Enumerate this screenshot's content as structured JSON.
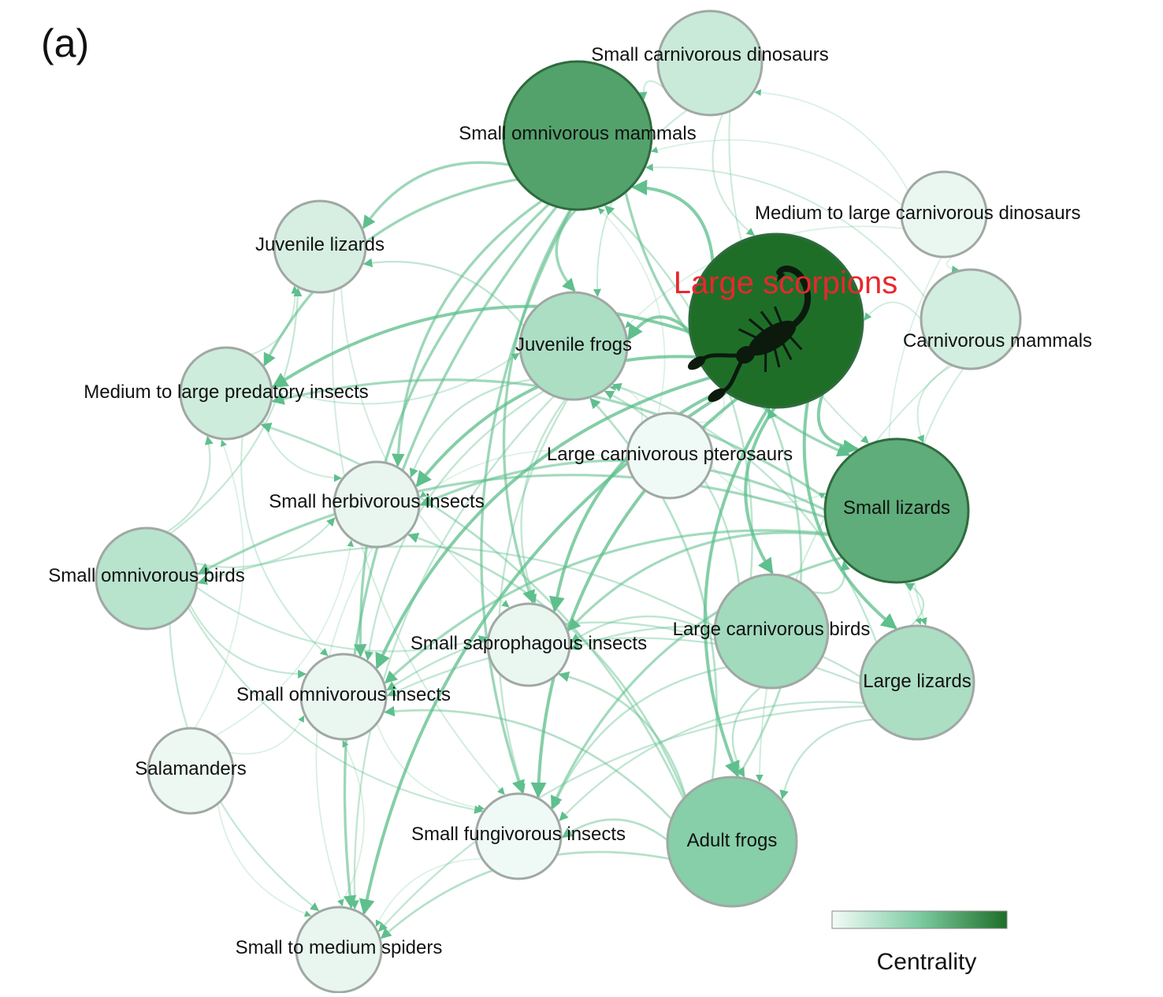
{
  "panel_label": "(a)",
  "highlighted_node": "Large scorpions",
  "highlight_color": "#e8282d",
  "node_stroke_color": "#a0a8a4",
  "legend": {
    "title": "Centrality",
    "color_low": "#f4fbf8",
    "color_high": "#1e6e28"
  },
  "nodes": [
    {
      "id": "small-carnivorous-dinosaurs",
      "label": "Small carnivorous dinosaurs",
      "centrality": 0.18
    },
    {
      "id": "small-omnivorous-mammals",
      "label": "Small omnivorous mammals",
      "centrality": 0.72
    },
    {
      "id": "juvenile-lizards",
      "label": "Juvenile lizards",
      "centrality": 0.12
    },
    {
      "id": "medium-to-large-carnivorous-dinosaurs",
      "label": "Medium to large carnivorous dinosaurs",
      "centrality": 0.04
    },
    {
      "id": "large-scorpions",
      "label": "Large scorpions",
      "centrality": 1.0,
      "icon": "scorpion-icon"
    },
    {
      "id": "carnivorous-mammals",
      "label": "Carnivorous mammals",
      "centrality": 0.14
    },
    {
      "id": "juvenile-frogs",
      "label": "Juvenile frogs",
      "centrality": 0.3
    },
    {
      "id": "medium-to-large-predatory-insects",
      "label": "Medium to large predatory insects",
      "centrality": 0.16
    },
    {
      "id": "large-carnivorous-pterosaurs",
      "label": "Large carnivorous pterosaurs",
      "centrality": 0.02
    },
    {
      "id": "small-lizards",
      "label": "Small lizards",
      "centrality": 0.66
    },
    {
      "id": "small-herbivorous-insects",
      "label": "Small herbivorous insects",
      "centrality": 0.05
    },
    {
      "id": "small-omnivorous-birds",
      "label": "Small omnivorous birds",
      "centrality": 0.25
    },
    {
      "id": "large-carnivorous-birds",
      "label": "Large carnivorous birds",
      "centrality": 0.34
    },
    {
      "id": "small-saprophagous-insects",
      "label": "Small saprophagous insects",
      "centrality": 0.04
    },
    {
      "id": "large-lizards",
      "label": "Large lizards",
      "centrality": 0.3
    },
    {
      "id": "small-omnivorous-insects",
      "label": "Small omnivorous insects",
      "centrality": 0.04
    },
    {
      "id": "salamanders",
      "label": "Salamanders",
      "centrality": 0.03
    },
    {
      "id": "small-fungivorous-insects",
      "label": "Small fungivorous insects",
      "centrality": 0.02
    },
    {
      "id": "adult-frogs",
      "label": "Adult frogs",
      "centrality": 0.46
    },
    {
      "id": "small-to-medium-spiders",
      "label": "Small to medium spiders",
      "centrality": 0.05
    }
  ],
  "edges": [
    [
      "small-carnivorous-dinosaurs",
      "small-omnivorous-mammals"
    ],
    [
      "small-carnivorous-dinosaurs",
      "large-scorpions"
    ],
    [
      "small-carnivorous-dinosaurs",
      "small-lizards"
    ],
    [
      "small-carnivorous-dinosaurs",
      "juvenile-frogs"
    ],
    [
      "medium-to-large-carnivorous-dinosaurs",
      "small-carnivorous-dinosaurs"
    ],
    [
      "medium-to-large-carnivorous-dinosaurs",
      "small-omnivorous-mammals"
    ],
    [
      "medium-to-large-carnivorous-dinosaurs",
      "carnivorous-mammals"
    ],
    [
      "medium-to-large-carnivorous-dinosaurs",
      "large-lizards"
    ],
    [
      "medium-to-large-carnivorous-dinosaurs",
      "juvenile-frogs"
    ],
    [
      "large-scorpions",
      "small-omnivorous-mammals"
    ],
    [
      "large-scorpions",
      "juvenile-frogs"
    ],
    [
      "large-scorpions",
      "small-lizards"
    ],
    [
      "large-scorpions",
      "adult-frogs"
    ],
    [
      "large-scorpions",
      "large-lizards"
    ],
    [
      "large-scorpions",
      "small-herbivorous-insects"
    ],
    [
      "large-scorpions",
      "small-saprophagous-insects"
    ],
    [
      "large-scorpions",
      "small-fungivorous-insects"
    ],
    [
      "large-scorpions",
      "small-omnivorous-insects"
    ],
    [
      "large-scorpions",
      "medium-to-large-predatory-insects"
    ],
    [
      "large-scorpions",
      "small-to-medium-spiders"
    ],
    [
      "large-scorpions",
      "large-carnivorous-birds"
    ],
    [
      "carnivorous-mammals",
      "large-scorpions"
    ],
    [
      "carnivorous-mammals",
      "small-lizards"
    ],
    [
      "carnivorous-mammals",
      "large-lizards"
    ],
    [
      "carnivorous-mammals",
      "adult-frogs"
    ],
    [
      "carnivorous-mammals",
      "small-omnivorous-mammals"
    ],
    [
      "small-omnivorous-mammals",
      "juvenile-lizards"
    ],
    [
      "small-omnivorous-mammals",
      "juvenile-frogs"
    ],
    [
      "small-omnivorous-mammals",
      "medium-to-large-predatory-insects"
    ],
    [
      "small-omnivorous-mammals",
      "small-herbivorous-insects"
    ],
    [
      "small-omnivorous-mammals",
      "small-saprophagous-insects"
    ],
    [
      "small-omnivorous-mammals",
      "small-omnivorous-insects"
    ],
    [
      "small-omnivorous-mammals",
      "small-fungivorous-insects"
    ],
    [
      "small-omnivorous-mammals",
      "small-to-medium-spiders"
    ],
    [
      "small-omnivorous-mammals",
      "small-lizards"
    ],
    [
      "large-carnivorous-pterosaurs",
      "juvenile-frogs"
    ],
    [
      "large-carnivorous-pterosaurs",
      "small-herbivorous-insects"
    ],
    [
      "large-carnivorous-pterosaurs",
      "small-lizards"
    ],
    [
      "large-carnivorous-pterosaurs",
      "small-omnivorous-mammals"
    ],
    [
      "large-carnivorous-pterosaurs",
      "large-scorpions"
    ],
    [
      "juvenile-frogs",
      "juvenile-lizards"
    ],
    [
      "juvenile-frogs",
      "small-herbivorous-insects"
    ],
    [
      "juvenile-frogs",
      "small-saprophagous-insects"
    ],
    [
      "juvenile-frogs",
      "small-omnivorous-insects"
    ],
    [
      "juvenile-frogs",
      "small-fungivorous-insects"
    ],
    [
      "juvenile-frogs",
      "small-to-medium-spiders"
    ],
    [
      "small-lizards",
      "small-herbivorous-insects"
    ],
    [
      "small-lizards",
      "small-saprophagous-insects"
    ],
    [
      "small-lizards",
      "small-omnivorous-insects"
    ],
    [
      "small-lizards",
      "small-fungivorous-insects"
    ],
    [
      "small-lizards",
      "small-omnivorous-birds"
    ],
    [
      "small-lizards",
      "medium-to-large-predatory-insects"
    ],
    [
      "large-carnivorous-birds",
      "small-lizards"
    ],
    [
      "large-carnivorous-birds",
      "juvenile-frogs"
    ],
    [
      "large-carnivorous-birds",
      "small-omnivorous-mammals"
    ],
    [
      "large-carnivorous-birds",
      "small-saprophagous-insects"
    ],
    [
      "large-carnivorous-birds",
      "small-omnivorous-insects"
    ],
    [
      "large-carnivorous-birds",
      "small-fungivorous-insects"
    ],
    [
      "large-carnivorous-birds",
      "adult-frogs"
    ],
    [
      "large-carnivorous-birds",
      "small-omnivorous-birds"
    ],
    [
      "large-lizards",
      "small-lizards"
    ],
    [
      "large-lizards",
      "small-saprophagous-insects"
    ],
    [
      "large-lizards",
      "small-omnivorous-insects"
    ],
    [
      "large-lizards",
      "small-fungivorous-insects"
    ],
    [
      "large-lizards",
      "adult-frogs"
    ],
    [
      "large-lizards",
      "small-to-medium-spiders"
    ],
    [
      "large-lizards",
      "juvenile-frogs"
    ],
    [
      "adult-frogs",
      "small-fungivorous-insects"
    ],
    [
      "adult-frogs",
      "small-saprophagous-insects"
    ],
    [
      "adult-frogs",
      "small-omnivorous-insects"
    ],
    [
      "adult-frogs",
      "small-herbivorous-insects"
    ],
    [
      "adult-frogs",
      "small-to-medium-spiders"
    ],
    [
      "adult-frogs",
      "medium-to-large-predatory-insects"
    ],
    [
      "adult-frogs",
      "juvenile-frogs"
    ],
    [
      "adult-frogs",
      "large-scorpions"
    ],
    [
      "medium-to-large-predatory-insects",
      "small-herbivorous-insects"
    ],
    [
      "medium-to-large-predatory-insects",
      "small-omnivorous-insects"
    ],
    [
      "medium-to-large-predatory-insects",
      "juvenile-frogs"
    ],
    [
      "medium-to-large-predatory-insects",
      "juvenile-lizards"
    ],
    [
      "small-omnivorous-birds",
      "medium-to-large-predatory-insects"
    ],
    [
      "small-omnivorous-birds",
      "juvenile-lizards"
    ],
    [
      "small-omnivorous-birds",
      "small-herbivorous-insects"
    ],
    [
      "small-omnivorous-birds",
      "small-omnivorous-insects"
    ],
    [
      "small-omnivorous-birds",
      "small-saprophagous-insects"
    ],
    [
      "small-omnivorous-birds",
      "small-fungivorous-insects"
    ],
    [
      "small-omnivorous-birds",
      "small-to-medium-spiders"
    ],
    [
      "salamanders",
      "small-omnivorous-insects"
    ],
    [
      "salamanders",
      "small-to-medium-spiders"
    ],
    [
      "salamanders",
      "small-herbivorous-insects"
    ],
    [
      "salamanders",
      "medium-to-large-predatory-insects"
    ],
    [
      "small-to-medium-spiders",
      "small-omnivorous-insects"
    ],
    [
      "small-fungivorous-insects",
      "small-to-medium-spiders"
    ],
    [
      "small-herbivorous-insects",
      "small-to-medium-spiders"
    ],
    [
      "juvenile-lizards",
      "small-saprophagous-insects"
    ],
    [
      "juvenile-lizards",
      "small-fungivorous-insects"
    ],
    [
      "small-omnivorous-insects",
      "small-fungivorous-insects"
    ]
  ]
}
